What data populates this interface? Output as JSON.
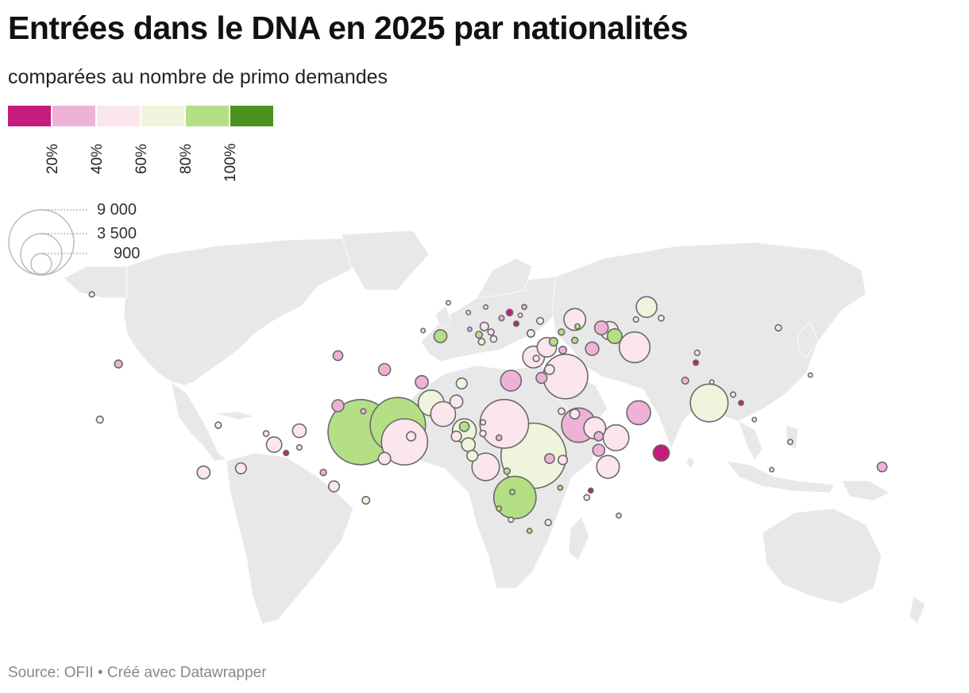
{
  "title": "Entrées dans le DNA en 2025 par nationalités",
  "subtitle": "comparées au nombre de primo demandes",
  "color_legend": {
    "colors": [
      "#c51b7d",
      "#eeb2d6",
      "#fbe6ec",
      "#eff5dc",
      "#b4df85",
      "#4d9221"
    ],
    "ticks": [
      "20%",
      "40%",
      "60%",
      "80%",
      "100%"
    ]
  },
  "size_legend": {
    "values": [
      9000,
      3500,
      900
    ],
    "labels": [
      "9 000",
      "3 500",
      "900"
    ]
  },
  "footer": {
    "source": "Source: OFII",
    "credit": "• Créé avec Datawrapper"
  },
  "map": {
    "land_color": "#e8e8e8",
    "bubble_stroke": "#6a6a6a",
    "bubbles": [
      {
        "lon": -40.0,
        "lat": 7.5,
        "value": 9000,
        "ratio": 0.9
      },
      {
        "lon": 25.0,
        "lat": -1.0,
        "value": 9000,
        "ratio": 0.68
      },
      {
        "lon": -26.0,
        "lat": 10.0,
        "value": 6500,
        "ratio": 0.8
      },
      {
        "lon": 37.0,
        "lat": 27.5,
        "value": 4200,
        "ratio": 0.45
      },
      {
        "lon": -23.5,
        "lat": 4.0,
        "value": 4500,
        "ratio": 0.5
      },
      {
        "lon": 14.0,
        "lat": 10.5,
        "value": 5000,
        "ratio": 0.5
      },
      {
        "lon": 18.0,
        "lat": -16.0,
        "value": 3800,
        "ratio": 0.85
      },
      {
        "lon": 91.0,
        "lat": 18.0,
        "value": 3000,
        "ratio": 0.68
      },
      {
        "lon": 42.0,
        "lat": 10.0,
        "value": 2500,
        "ratio": 0.3
      },
      {
        "lon": 63.0,
        "lat": 38.0,
        "value": 2000,
        "ratio": 0.45
      },
      {
        "lon": -13.5,
        "lat": 18.0,
        "value": 1400,
        "ratio": 0.65
      },
      {
        "lon": -9.0,
        "lat": 14.0,
        "value": 1300,
        "ratio": 0.5
      },
      {
        "lon": -1.0,
        "lat": 8.0,
        "value": 1200,
        "ratio": 0.6
      },
      {
        "lon": 7.0,
        "lat": -5.0,
        "value": 1600,
        "ratio": 0.55
      },
      {
        "lon": 56.0,
        "lat": 5.5,
        "value": 1400,
        "ratio": 0.45
      },
      {
        "lon": 64.5,
        "lat": 14.5,
        "value": 1200,
        "ratio": 0.3
      },
      {
        "lon": 25.0,
        "lat": 34.5,
        "value": 1000,
        "ratio": 0.5
      },
      {
        "lon": 53.0,
        "lat": -5.0,
        "value": 1100,
        "ratio": 0.5
      },
      {
        "lon": 48.0,
        "lat": 9.0,
        "value": 1000,
        "ratio": 0.5
      },
      {
        "lon": 16.5,
        "lat": 26.0,
        "value": 900,
        "ratio": 0.3
      },
      {
        "lon": 30.0,
        "lat": 38.0,
        "value": 800,
        "ratio": 0.45
      },
      {
        "lon": 40.5,
        "lat": 48.0,
        "value": 1000,
        "ratio": 0.5
      },
      {
        "lon": 53.5,
        "lat": 44.0,
        "value": 700,
        "ratio": 0.5
      },
      {
        "lon": -72.5,
        "lat": 3.0,
        "value": 500,
        "ratio": 0.5
      },
      {
        "lon": -99.0,
        "lat": -7.0,
        "value": 350,
        "ratio": 0.45
      },
      {
        "lon": -50.0,
        "lat": -12.0,
        "value": 250,
        "ratio": 0.5
      },
      {
        "lon": -31.0,
        "lat": -2.0,
        "value": 320,
        "ratio": 0.45
      },
      {
        "lon": -48.5,
        "lat": 17.0,
        "value": 300,
        "ratio": 0.3
      },
      {
        "lon": -63.0,
        "lat": 8.0,
        "value": 400,
        "ratio": 0.55
      },
      {
        "lon": -31.0,
        "lat": 30.0,
        "value": 300,
        "ratio": 0.3
      },
      {
        "lon": -17.0,
        "lat": 25.5,
        "value": 350,
        "ratio": 0.38
      },
      {
        "lon": -4.0,
        "lat": 18.5,
        "value": 350,
        "ratio": 0.45
      },
      {
        "lon": -2.0,
        "lat": 25.0,
        "value": 250,
        "ratio": 0.7
      },
      {
        "lon": 0.5,
        "lat": 3.0,
        "value": 400,
        "ratio": 0.75
      },
      {
        "lon": 49.5,
        "lat": 1.0,
        "value": 300,
        "ratio": 0.3
      },
      {
        "lon": 55.5,
        "lat": 42.0,
        "value": 450,
        "ratio": 0.8
      },
      {
        "lon": 50.5,
        "lat": 45.0,
        "value": 400,
        "ratio": 0.28
      },
      {
        "lon": 47.0,
        "lat": 37.5,
        "value": 380,
        "ratio": 0.2
      },
      {
        "lon": 73.0,
        "lat": 0.0,
        "value": 550,
        "ratio": 0.15
      },
      {
        "lon": 156.0,
        "lat": -5.0,
        "value": 200,
        "ratio": 0.35
      },
      {
        "lon": -10.0,
        "lat": 42.0,
        "value": 350,
        "ratio": 0.88
      },
      {
        "lon": 28.0,
        "lat": 27.0,
        "value": 250,
        "ratio": 0.3
      },
      {
        "lon": -1.0,
        "lat": 9.5,
        "value": 200,
        "ratio": 0.9
      },
      {
        "lon": -4.0,
        "lat": 6.0,
        "value": 220,
        "ratio": 0.4
      },
      {
        "lon": -21.0,
        "lat": 6.0,
        "value": 180,
        "ratio": 0.45
      },
      {
        "lon": 2.0,
        "lat": -1.0,
        "value": 250,
        "ratio": 0.7
      },
      {
        "lon": 31.0,
        "lat": -2.0,
        "value": 200,
        "ratio": 0.3
      },
      {
        "lon": 36.0,
        "lat": -2.5,
        "value": 180,
        "ratio": 0.5
      },
      {
        "lon": 40.5,
        "lat": 14.0,
        "value": 200,
        "ratio": 0.45
      },
      {
        "lon": 49.5,
        "lat": 6.0,
        "value": 180,
        "ratio": 0.3
      },
      {
        "lon": 32.5,
        "lat": 40.0,
        "value": 150,
        "ratio": 0.88
      },
      {
        "lon": 67.5,
        "lat": 52.5,
        "value": 900,
        "ratio": 0.65
      },
      {
        "lon": -48.5,
        "lat": 35.0,
        "value": 200,
        "ratio": 0.3
      },
      {
        "lon": -85.0,
        "lat": -5.5,
        "value": 250,
        "ratio": 0.4
      },
      {
        "lon": -93.5,
        "lat": 10.0,
        "value": 80,
        "ratio": 0.45
      },
      {
        "lon": -131.0,
        "lat": 32.0,
        "value": 130,
        "ratio": 0.35
      },
      {
        "lon": -138.0,
        "lat": 12.0,
        "value": 100,
        "ratio": 0.65
      },
      {
        "lon": -141.0,
        "lat": 57.0,
        "value": 60,
        "ratio": 0.5
      },
      {
        "lon": -68.0,
        "lat": 0.0,
        "value": 60,
        "ratio": 0.1
      },
      {
        "lon": -75.5,
        "lat": 7.0,
        "value": 70,
        "ratio": 0.4
      },
      {
        "lon": -63.0,
        "lat": 2.0,
        "value": 60,
        "ratio": 0.5
      },
      {
        "lon": -54.0,
        "lat": -7.0,
        "value": 80,
        "ratio": 0.35
      },
      {
        "lon": -38.0,
        "lat": -17.0,
        "value": 120,
        "ratio": 0.65
      },
      {
        "lon": -39.0,
        "lat": 15.0,
        "value": 60,
        "ratio": 0.25
      },
      {
        "lon": 6.0,
        "lat": 7.0,
        "value": 80,
        "ratio": 0.65
      },
      {
        "lon": 6.0,
        "lat": 11.0,
        "value": 60,
        "ratio": 0.4
      },
      {
        "lon": 12.0,
        "lat": 5.5,
        "value": 70,
        "ratio": 0.35
      },
      {
        "lon": 15.0,
        "lat": -6.5,
        "value": 80,
        "ratio": 0.9
      },
      {
        "lon": 17.0,
        "lat": -14.0,
        "value": 60,
        "ratio": 0.9
      },
      {
        "lon": 12.0,
        "lat": -20.0,
        "value": 60,
        "ratio": 0.8
      },
      {
        "lon": 16.5,
        "lat": -24.0,
        "value": 60,
        "ratio": 0.5
      },
      {
        "lon": 23.5,
        "lat": -28.0,
        "value": 50,
        "ratio": 0.9
      },
      {
        "lon": 30.5,
        "lat": -25.0,
        "value": 80,
        "ratio": 0.4
      },
      {
        "lon": 45.0,
        "lat": -16.0,
        "value": 70,
        "ratio": 0.4
      },
      {
        "lon": 57.0,
        "lat": -22.5,
        "value": 50,
        "ratio": 0.4
      },
      {
        "lon": 35.0,
        "lat": -12.5,
        "value": 50,
        "ratio": 0.95
      },
      {
        "lon": 46.5,
        "lat": -13.5,
        "value": 50,
        "ratio": 0.1
      },
      {
        "lon": 35.5,
        "lat": 15.0,
        "value": 90,
        "ratio": 0.45
      },
      {
        "lon": 31.0,
        "lat": 30.0,
        "value": 200,
        "ratio": 0.4
      },
      {
        "lon": 26.0,
        "lat": 34.0,
        "value": 80,
        "ratio": 0.4
      },
      {
        "lon": 24.0,
        "lat": 43.0,
        "value": 120,
        "ratio": 0.45
      },
      {
        "lon": 36.0,
        "lat": 37.0,
        "value": 120,
        "ratio": 0.3
      },
      {
        "lon": 10.0,
        "lat": 41.0,
        "value": 90,
        "ratio": 0.55
      },
      {
        "lon": 5.5,
        "lat": 40.0,
        "value": 90,
        "ratio": 0.6
      },
      {
        "lon": 16.0,
        "lat": 50.5,
        "value": 90,
        "ratio": 0.15
      },
      {
        "lon": 6.5,
        "lat": 45.5,
        "value": 150,
        "ratio": 0.5
      },
      {
        "lon": 4.5,
        "lat": 42.5,
        "value": 100,
        "ratio": 0.9
      },
      {
        "lon": 9.0,
        "lat": 43.5,
        "value": 80,
        "ratio": 0.5
      },
      {
        "lon": 1.0,
        "lat": 44.5,
        "value": 40,
        "ratio": 0.35
      },
      {
        "lon": 7.0,
        "lat": 52.5,
        "value": 40,
        "ratio": 0.5
      },
      {
        "lon": 0.5,
        "lat": 50.5,
        "value": 40,
        "ratio": 0.5
      },
      {
        "lon": -7.0,
        "lat": 54.0,
        "value": 40,
        "ratio": 0.5
      },
      {
        "lon": -16.5,
        "lat": 44.0,
        "value": 40,
        "ratio": 0.45
      },
      {
        "lon": 13.0,
        "lat": 48.5,
        "value": 60,
        "ratio": 0.35
      },
      {
        "lon": 18.5,
        "lat": 46.5,
        "value": 60,
        "ratio": 0.1
      },
      {
        "lon": 20.0,
        "lat": 49.5,
        "value": 40,
        "ratio": 0.5
      },
      {
        "lon": 21.5,
        "lat": 52.5,
        "value": 50,
        "ratio": 0.35
      },
      {
        "lon": 27.5,
        "lat": 47.5,
        "value": 100,
        "ratio": 0.7
      },
      {
        "lon": 35.5,
        "lat": 43.5,
        "value": 80,
        "ratio": 0.9
      },
      {
        "lon": 41.5,
        "lat": 45.5,
        "value": 60,
        "ratio": 0.9
      },
      {
        "lon": 40.5,
        "lat": 40.5,
        "value": 80,
        "ratio": 0.9
      },
      {
        "lon": 63.5,
        "lat": 48.0,
        "value": 60,
        "ratio": 0.5
      },
      {
        "lon": 82.0,
        "lat": 26.0,
        "value": 100,
        "ratio": 0.3
      },
      {
        "lon": 86.0,
        "lat": 32.5,
        "value": 60,
        "ratio": 0.15
      },
      {
        "lon": 92.0,
        "lat": 25.5,
        "value": 40,
        "ratio": 0.5
      },
      {
        "lon": 100.0,
        "lat": 21.0,
        "value": 60,
        "ratio": 0.4
      },
      {
        "lon": 103.0,
        "lat": 18.0,
        "value": 50,
        "ratio": 0.1
      },
      {
        "lon": 108.0,
        "lat": 12.0,
        "value": 40,
        "ratio": 0.4
      },
      {
        "lon": 117.0,
        "lat": 45.0,
        "value": 80,
        "ratio": 0.4
      },
      {
        "lon": 129.0,
        "lat": 28.0,
        "value": 40,
        "ratio": 0.5
      },
      {
        "lon": 121.5,
        "lat": 4.0,
        "value": 50,
        "ratio": 0.4
      },
      {
        "lon": 114.5,
        "lat": -6.0,
        "value": 40,
        "ratio": 0.5
      },
      {
        "lon": 86.5,
        "lat": 36.0,
        "value": 60,
        "ratio": 0.5
      },
      {
        "lon": 73.0,
        "lat": 48.5,
        "value": 70,
        "ratio": 0.65
      }
    ]
  }
}
